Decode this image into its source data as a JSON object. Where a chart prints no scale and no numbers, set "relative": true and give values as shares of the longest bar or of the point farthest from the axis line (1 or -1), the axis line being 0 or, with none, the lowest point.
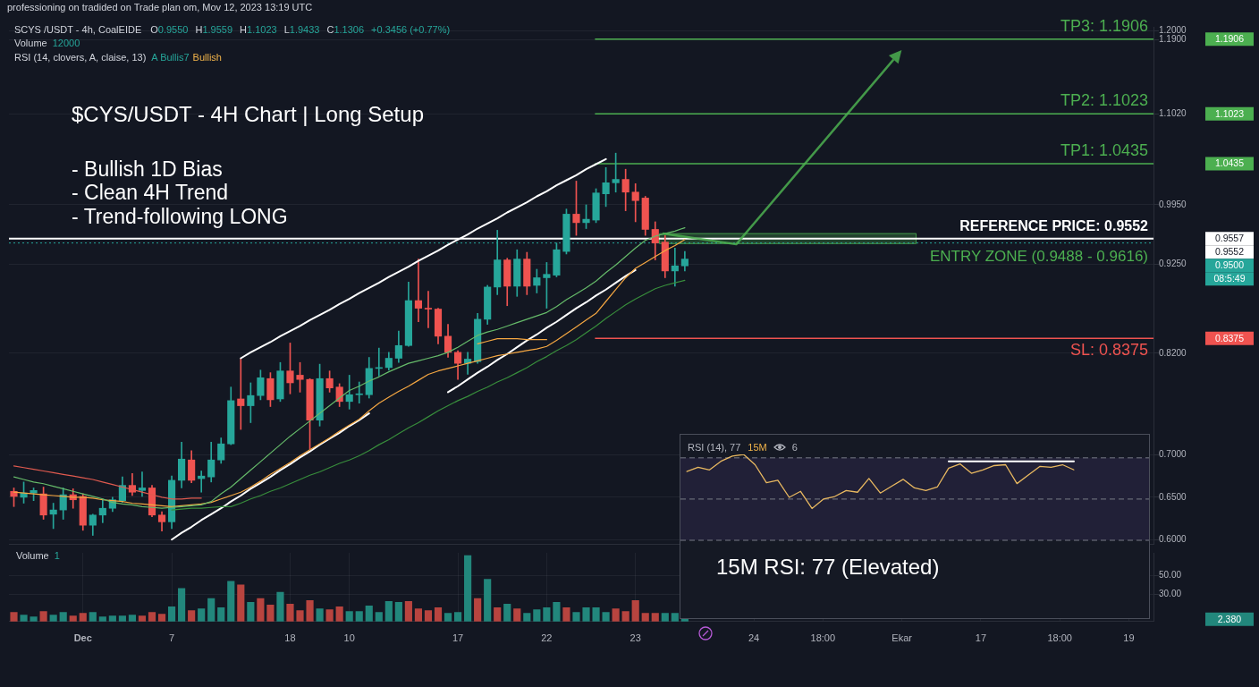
{
  "chart_data": [
    {
      "type": "candlestick",
      "title": "$CYS/USDT - 4H Chart | Long Setup",
      "categories": [
        null,
        null,
        null,
        null,
        null,
        null,
        null,
        null,
        null,
        null,
        null,
        null,
        null,
        null,
        null,
        null,
        null,
        null,
        null,
        null,
        null,
        null,
        null,
        null,
        null,
        null,
        null,
        null,
        null,
        null,
        null,
        null,
        null,
        null,
        null,
        null,
        null,
        null,
        null,
        null,
        null,
        null,
        null,
        null,
        null,
        null,
        null,
        null,
        null,
        null,
        null,
        null,
        null,
        null,
        null,
        null,
        null,
        null,
        null,
        null,
        null,
        null,
        null,
        null,
        null,
        null,
        null,
        null,
        null,
        null,
        null,
        null,
        null,
        null,
        null,
        null,
        null,
        null,
        null,
        null,
        null,
        null,
        null,
        null,
        null,
        null,
        null,
        null,
        null,
        null,
        null,
        null,
        null,
        null,
        null,
        null,
        null,
        null,
        null,
        null,
        null,
        null,
        null,
        null,
        null,
        null,
        null,
        null,
        null,
        null,
        null,
        null,
        null,
        null,
        null,
        null
      ],
      "ohlc": [
        [
          0.657,
          0.661,
          0.639,
          0.651
        ],
        [
          0.65,
          0.668,
          0.643,
          0.655
        ],
        [
          0.655,
          0.661,
          0.646,
          0.658
        ],
        [
          0.654,
          0.662,
          0.624,
          0.629
        ],
        [
          0.63,
          0.643,
          0.613,
          0.635
        ],
        [
          0.635,
          0.661,
          0.624,
          0.653
        ],
        [
          0.653,
          0.66,
          0.637,
          0.647
        ],
        [
          0.651,
          0.654,
          0.611,
          0.617
        ],
        [
          0.617,
          0.63,
          0.605,
          0.629
        ],
        [
          0.629,
          0.648,
          0.62,
          0.637
        ],
        [
          0.637,
          0.65,
          0.633,
          0.647
        ],
        [
          0.646,
          0.674,
          0.644,
          0.664
        ],
        [
          0.664,
          0.678,
          0.652,
          0.656
        ],
        [
          0.658,
          0.68,
          0.651,
          0.661
        ],
        [
          0.661,
          0.664,
          0.627,
          0.629
        ],
        [
          0.629,
          0.633,
          0.61,
          0.621
        ],
        [
          0.621,
          0.675,
          0.613,
          0.67
        ],
        [
          0.67,
          0.715,
          0.661,
          0.695
        ],
        [
          0.694,
          0.705,
          0.667,
          0.67
        ],
        [
          0.672,
          0.681,
          0.656,
          0.675
        ],
        [
          0.674,
          0.715,
          0.668,
          0.694
        ],
        [
          0.694,
          0.72,
          0.69,
          0.713
        ],
        [
          0.713,
          0.78,
          0.712,
          0.764
        ],
        [
          0.766,
          0.813,
          0.73,
          0.758
        ],
        [
          0.758,
          0.785,
          0.738,
          0.77
        ],
        [
          0.77,
          0.8,
          0.765,
          0.791
        ],
        [
          0.79,
          0.797,
          0.757,
          0.765
        ],
        [
          0.766,
          0.809,
          0.763,
          0.799
        ],
        [
          0.799,
          0.832,
          0.772,
          0.785
        ],
        [
          0.794,
          0.809,
          0.774,
          0.789
        ],
        [
          0.789,
          0.79,
          0.707,
          0.741
        ],
        [
          0.741,
          0.807,
          0.734,
          0.79
        ],
        [
          0.79,
          0.799,
          0.774,
          0.779
        ],
        [
          0.78,
          0.784,
          0.757,
          0.763
        ],
        [
          0.763,
          0.794,
          0.754,
          0.771
        ],
        [
          0.771,
          0.786,
          0.761,
          0.772
        ],
        [
          0.771,
          0.815,
          0.767,
          0.802
        ],
        [
          0.802,
          0.826,
          0.793,
          0.803
        ],
        [
          0.803,
          0.821,
          0.8,
          0.814
        ],
        [
          0.814,
          0.846,
          0.809,
          0.829
        ],
        [
          0.829,
          0.904,
          0.828,
          0.882
        ],
        [
          0.882,
          0.931,
          0.857,
          0.873
        ],
        [
          0.873,
          0.893,
          0.85,
          0.872
        ],
        [
          0.872,
          0.873,
          0.831,
          0.84
        ],
        [
          0.84,
          0.854,
          0.815,
          0.821
        ],
        [
          0.821,
          0.823,
          0.789,
          0.808
        ],
        [
          0.808,
          0.821,
          0.795,
          0.813
        ],
        [
          0.81,
          0.867,
          0.808,
          0.86
        ],
        [
          0.86,
          0.9,
          0.854,
          0.898
        ],
        [
          0.898,
          0.965,
          0.889,
          0.93
        ],
        [
          0.93,
          0.932,
          0.876,
          0.899
        ],
        [
          0.899,
          0.942,
          0.887,
          0.931
        ],
        [
          0.931,
          0.939,
          0.889,
          0.899
        ],
        [
          0.9,
          0.919,
          0.891,
          0.909
        ],
        [
          0.909,
          0.927,
          0.873,
          0.913
        ],
        [
          0.912,
          0.95,
          0.91,
          0.942
        ],
        [
          0.94,
          0.99,
          0.937,
          0.984
        ],
        [
          0.984,
          1.023,
          0.959,
          0.974
        ],
        [
          0.974,
          0.995,
          0.967,
          0.978
        ],
        [
          0.977,
          1.014,
          0.974,
          1.009
        ],
        [
          1.008,
          1.039,
          0.993,
          1.021
        ],
        [
          1.021,
          1.056,
          1.01,
          1.025
        ],
        [
          1.025,
          1.037,
          0.988,
          1.01
        ],
        [
          1.01,
          1.02,
          0.975,
          1.0
        ],
        [
          1.003,
          1.005,
          0.959,
          0.966
        ],
        [
          0.966,
          0.975,
          0.93,
          0.95
        ],
        [
          0.951,
          0.959,
          0.909,
          0.917
        ],
        [
          0.917,
          0.944,
          0.899,
          0.923
        ],
        [
          0.923,
          0.94,
          0.917,
          0.931
        ],
        null,
        null,
        null,
        null,
        null,
        null,
        null,
        null,
        null,
        null,
        null,
        null,
        null,
        null,
        null,
        null,
        null,
        null,
        null,
        null,
        null,
        null,
        null,
        null,
        null,
        null,
        null,
        null,
        null,
        null,
        null,
        null,
        null,
        null,
        null,
        null,
        null,
        null,
        null,
        null,
        null,
        null,
        null,
        null,
        null,
        null,
        null
      ],
      "colors": [
        "#ef5350",
        "#26a69a",
        "#26a69a",
        "#ef5350",
        "#26a69a",
        "#26a69a",
        "#ef5350",
        "#ef5350",
        "#26a69a",
        "#26a69a",
        "#26a69a",
        "#26a69a",
        "#ef5350",
        "#26a69a",
        "#ef5350",
        "#ef5350",
        "#26a69a",
        "#26a69a",
        "#ef5350",
        "#26a69a",
        "#26a69a",
        "#26a69a",
        "#26a69a",
        "#ef5350",
        "#26a69a",
        "#26a69a",
        "#ef5350",
        "#26a69a",
        "#ef5350",
        "#ef5350",
        "#ef5350",
        "#26a69a",
        "#ef5350",
        "#ef5350",
        "#26a69a",
        "#26a69a",
        "#26a69a",
        "#26a69a",
        "#26a69a",
        "#26a69a",
        "#26a69a",
        "#ef5350",
        "#ef5350",
        "#ef5350",
        "#ef5350",
        "#ef5350",
        "#26a69a",
        "#26a69a",
        "#26a69a",
        "#26a69a",
        "#ef5350",
        "#26a69a",
        "#ef5350",
        "#26a69a",
        "#26a69a",
        "#26a69a",
        "#26a69a",
        "#ef5350",
        "#26a69a",
        "#26a69a",
        "#26a69a",
        "#26a69a",
        "#ef5350",
        "#ef5350",
        "#ef5350",
        "#ef5350",
        "#ef5350",
        "#26a69a",
        "#26a69a",
        null,
        null,
        null,
        null,
        null,
        null,
        null,
        null,
        null,
        null,
        null,
        null,
        null,
        null,
        null,
        null,
        null,
        null,
        null,
        null,
        null,
        null,
        null,
        null,
        null,
        null,
        null,
        null,
        null,
        null,
        null,
        null,
        null,
        null,
        null,
        null,
        null,
        null,
        null,
        null,
        null,
        null,
        null,
        null,
        null,
        null,
        null
      ],
      "series": [
        {
          "type": "line",
          "color": "#66bb6a",
          "values": [
            0.674,
            0.671,
            0.668,
            0.666,
            0.663,
            0.66,
            0.657,
            0.654,
            0.651,
            0.648,
            0.644,
            0.642,
            0.641,
            0.639,
            0.638,
            0.637,
            0.638,
            0.639,
            0.64,
            0.641,
            0.645,
            0.654,
            0.662,
            0.672,
            0.682,
            0.692,
            0.702,
            0.712,
            0.722,
            0.731,
            0.74,
            0.749,
            0.758,
            0.767,
            0.776,
            0.781,
            0.787,
            0.792,
            0.798,
            0.803,
            0.808,
            0.811,
            0.814,
            0.817,
            0.821,
            0.827,
            0.834,
            0.841,
            0.845,
            0.848,
            0.852,
            0.856,
            0.86,
            0.864,
            0.868,
            0.875,
            0.883,
            0.89,
            0.897,
            0.905,
            0.915,
            0.924,
            0.934,
            0.944,
            0.953,
            0.958,
            0.961,
            0.964,
            0.968,
            null,
            null,
            null,
            null,
            null,
            null,
            null,
            null,
            null,
            null,
            null,
            null,
            null,
            null,
            null,
            null,
            null,
            null,
            null,
            null,
            null,
            null,
            null,
            null,
            null,
            null,
            null,
            null,
            null,
            null,
            null,
            null,
            null,
            null,
            null,
            null,
            null,
            null,
            null,
            null,
            null,
            null,
            null,
            null,
            null,
            null,
            null
          ]
        },
        {
          "type": "line",
          "color": "#f5a742",
          "values": [
            0.656,
            0.655,
            0.654,
            0.653,
            0.652,
            0.651,
            0.65,
            0.65,
            0.649,
            0.647,
            0.646,
            0.645,
            0.643,
            0.642,
            0.641,
            0.64,
            0.639,
            0.64,
            0.641,
            0.642,
            0.644,
            0.648,
            0.652,
            0.656,
            0.662,
            0.669,
            0.677,
            0.684,
            0.691,
            0.699,
            0.706,
            0.713,
            0.72,
            0.728,
            0.735,
            0.742,
            0.752,
            0.761,
            0.768,
            0.775,
            0.781,
            0.788,
            0.795,
            0.799,
            0.802,
            0.805,
            0.808,
            0.811,
            0.814,
            0.817,
            0.819,
            0.821,
            0.823,
            0.825,
            0.828,
            0.835,
            0.843,
            0.851,
            0.859,
            0.867,
            0.881,
            0.895,
            0.909,
            0.92,
            0.927,
            0.934,
            0.941,
            0.947,
            0.954,
            null,
            null,
            null,
            null,
            null,
            null,
            null,
            null,
            null,
            null,
            null,
            null,
            null,
            null,
            null,
            null,
            null,
            null,
            null,
            null,
            null,
            null,
            null,
            null,
            null,
            null,
            null,
            null,
            null,
            null,
            null,
            null,
            null,
            null,
            null,
            null,
            null,
            null,
            null,
            null,
            null,
            null,
            null,
            null,
            null,
            null,
            null
          ]
        },
        {
          "type": "line",
          "color": "#388e3c",
          "values": [
            null,
            null,
            null,
            null,
            null,
            null,
            null,
            null,
            null,
            null,
            null,
            null,
            null,
            null,
            null,
            null,
            0.635,
            0.636,
            0.637,
            0.637,
            0.638,
            0.639,
            0.639,
            0.643,
            0.648,
            0.652,
            0.657,
            0.661,
            0.666,
            0.671,
            0.676,
            0.68,
            0.685,
            0.69,
            0.694,
            0.699,
            0.705,
            0.712,
            0.718,
            0.725,
            0.732,
            0.738,
            0.745,
            0.752,
            0.758,
            0.764,
            0.769,
            0.775,
            0.78,
            0.786,
            0.791,
            0.797,
            0.803,
            0.81,
            0.816,
            0.823,
            0.829,
            0.836,
            0.844,
            0.852,
            0.861,
            0.869,
            0.877,
            0.884,
            0.89,
            0.896,
            0.9,
            0.903,
            0.906,
            null,
            null,
            null,
            null,
            null,
            null,
            null,
            null,
            null,
            null,
            null,
            null,
            null,
            null,
            null,
            null,
            null,
            null,
            null,
            null,
            null,
            null,
            null,
            null,
            null,
            null,
            null,
            null,
            null,
            null,
            null,
            null,
            null,
            null,
            null,
            null,
            null,
            null,
            null,
            null,
            null,
            null,
            null,
            null,
            null,
            null,
            null
          ]
        },
        {
          "type": "line",
          "color": "#e05a4f",
          "values": [
            0.687,
            0.685,
            0.683,
            0.681,
            0.679,
            0.677,
            0.675,
            0.673,
            0.671,
            0.668,
            0.665,
            0.662,
            0.659,
            0.656,
            0.653,
            0.65,
            0.648,
            0.648,
            0.649,
            0.649,
            null,
            null,
            null,
            null,
            null,
            null,
            null,
            null,
            null,
            null,
            null,
            null,
            null,
            null,
            null,
            null,
            null,
            null,
            null,
            null,
            null,
            null,
            null,
            null,
            null,
            null,
            null,
            null,
            null,
            null,
            null,
            null,
            null,
            null,
            null,
            null,
            null,
            null,
            null,
            null,
            null,
            null,
            null,
            null,
            null,
            null,
            null,
            null,
            null,
            null,
            null,
            null,
            null,
            null,
            null,
            null,
            null,
            null,
            null,
            null,
            null,
            null,
            null,
            null,
            null,
            null,
            null,
            null,
            null,
            null,
            null,
            null,
            null,
            null,
            null,
            null,
            null,
            null,
            null,
            null,
            null,
            null,
            null,
            null,
            null,
            null,
            null,
            null,
            null,
            null,
            null,
            null,
            null,
            null,
            null,
            null
          ]
        },
        {
          "type": "line",
          "color": "#f5a742",
          "values": [
            null,
            null,
            null,
            null,
            null,
            null,
            null,
            null,
            null,
            null,
            null,
            null,
            null,
            null,
            null,
            null,
            null,
            null,
            null,
            null,
            null,
            null,
            null,
            null,
            null,
            null,
            null,
            null,
            null,
            null,
            null,
            null,
            null,
            null,
            null,
            null,
            null,
            null,
            null,
            null,
            null,
            null,
            null,
            null,
            null,
            null,
            null,
            0.831,
            0.834,
            0.837,
            0.837,
            0.837,
            0.836,
            0.836,
            0.836,
            null,
            null,
            null,
            null,
            null,
            null,
            null,
            null,
            null,
            null,
            null,
            null,
            null,
            null,
            null,
            null,
            null,
            null,
            null,
            null,
            null,
            null,
            null,
            null,
            null,
            null,
            null,
            null,
            null,
            null,
            null,
            null,
            null,
            null,
            null,
            null,
            null,
            null,
            null,
            null,
            null,
            null,
            null,
            null,
            null,
            null,
            null,
            null,
            null,
            null,
            null,
            null,
            null,
            null,
            null,
            null,
            null,
            null,
            null,
            null,
            null
          ]
        },
        {
          "type": "line",
          "color": "#ffffff",
          "values": [
            null,
            null,
            null,
            null,
            null,
            null,
            null,
            null,
            null,
            null,
            null,
            null,
            null,
            null,
            null,
            null,
            null,
            null,
            null,
            null,
            null,
            null,
            null,
            0.814,
            0.821,
            0.827,
            0.833,
            0.84,
            0.846,
            0.852,
            0.859,
            0.865,
            0.871,
            0.878,
            0.884,
            0.891,
            0.897,
            0.903,
            0.91,
            0.916,
            0.922,
            0.929,
            0.935,
            0.941,
            0.948,
            0.954,
            0.96,
            0.967,
            0.973,
            0.979,
            0.986,
            0.992,
            0.998,
            1.005,
            1.011,
            1.018,
            1.024,
            1.03,
            1.037,
            1.043,
            1.049,
            null,
            null,
            null,
            null,
            null,
            null,
            null,
            null,
            null,
            null,
            null,
            null,
            null,
            null,
            null,
            null,
            null,
            null,
            null,
            null,
            null,
            null,
            null,
            null,
            null,
            null,
            null,
            null,
            null,
            null,
            null,
            null,
            null,
            null,
            null,
            null,
            null,
            null,
            null,
            null,
            null,
            null,
            null,
            null,
            null,
            null,
            null,
            null,
            null,
            null,
            null,
            null,
            null,
            null,
            null
          ]
        },
        {
          "type": "line",
          "color": "#ffffff",
          "values": [
            null,
            null,
            null,
            null,
            null,
            null,
            null,
            null,
            null,
            null,
            null,
            null,
            null,
            null,
            null,
            null,
            0.6,
            0.608,
            0.615,
            0.623,
            0.63,
            0.637,
            0.645,
            0.652,
            0.66,
            0.667,
            0.674,
            0.682,
            0.689,
            0.697,
            0.704,
            0.712,
            0.719,
            0.726,
            0.734,
            0.741,
            0.749,
            null,
            null,
            null,
            null,
            null,
            null,
            null,
            null,
            null,
            null,
            null,
            null,
            null,
            null,
            null,
            null,
            null,
            null,
            null,
            null,
            null,
            null,
            null,
            null,
            null,
            null,
            null,
            null,
            null,
            null,
            null,
            null,
            null,
            null,
            null,
            null,
            null,
            null,
            null,
            null,
            null,
            null,
            null,
            null,
            null,
            null,
            null,
            null,
            null,
            null,
            null,
            null,
            null,
            null,
            null,
            null,
            null,
            null,
            null,
            null,
            null,
            null,
            null,
            null,
            null,
            null,
            null,
            null,
            null,
            null,
            null,
            null,
            null,
            null,
            null,
            null,
            null,
            null,
            null
          ]
        },
        {
          "type": "line",
          "color": "#ffffff",
          "values": [
            null,
            null,
            null,
            null,
            null,
            null,
            null,
            null,
            null,
            null,
            null,
            null,
            null,
            null,
            null,
            null,
            null,
            null,
            null,
            null,
            null,
            null,
            null,
            null,
            null,
            null,
            null,
            null,
            null,
            null,
            null,
            null,
            null,
            null,
            null,
            null,
            null,
            null,
            null,
            null,
            null,
            null,
            null,
            null,
            0.774,
            0.781,
            0.789,
            0.797,
            0.804,
            0.812,
            0.819,
            0.827,
            0.835,
            0.842,
            0.85,
            0.857,
            0.865,
            0.873,
            0.88,
            0.888,
            0.895,
            0.903,
            0.911,
            0.918,
            null,
            null,
            null,
            null,
            null,
            null,
            null,
            null,
            null,
            null,
            null,
            null,
            null,
            null,
            null,
            null,
            null,
            null,
            null,
            null,
            null,
            null,
            null,
            null,
            null,
            null,
            null,
            null,
            null,
            null,
            null,
            null,
            null,
            null,
            null,
            null,
            null,
            null,
            null,
            null,
            null,
            null,
            null,
            null,
            null,
            null,
            null,
            null,
            null,
            null,
            null,
            null
          ]
        }
      ],
      "ylim": [
        0.595,
        1.205
      ],
      "yticks": [
        {
          "value": 0.6,
          "label": "0.6000"
        },
        {
          "value": 0.65,
          "label": "0.6500"
        },
        {
          "value": 0.7,
          "label": "0.7000"
        },
        {
          "value": 0.82,
          "label": "0.8200"
        },
        {
          "value": 0.925,
          "label": "0.9250"
        },
        {
          "value": 0.995,
          "label": "0.9950"
        },
        {
          "value": 1.102,
          "label": "1.1020"
        },
        {
          "value": 1.19,
          "label": "1.1900"
        },
        {
          "value": 1.2,
          "label": "1.2000"
        }
      ],
      "ref_lines": [
        {
          "axis": "y",
          "value": 1.1906,
          "label": "TP3: 1.1906",
          "color": "#4caf50"
        },
        {
          "axis": "y",
          "value": 1.1023,
          "label": "TP2: 1.1023",
          "color": "#4caf50"
        },
        {
          "axis": "y",
          "value": 1.0435,
          "label": "TP1: 1.0435",
          "color": "#4caf50"
        },
        {
          "axis": "y",
          "value": 0.9552,
          "label": "REFERENCE PRICE: 0.9552",
          "color": "#ffffff"
        },
        {
          "axis": "y",
          "value": 0.95,
          "color": "#26a69a",
          "line_style": "dotted"
        },
        {
          "axis": "y",
          "value": 0.8375,
          "label": "SL: 0.8375",
          "color": "#ef5350"
        }
      ],
      "bands": [
        {
          "axis": "y",
          "from": 0.9488,
          "to": 0.9616,
          "label": "ENTRY ZONE (0.9488 - 0.9616)",
          "color": "#4caf50"
        }
      ],
      "annotations": [
        "professioning on tradided on Trade plan om, Mov 12, 2023 13:19 UTC",
        "SCYS /USDT - 4h, CoalEIDE",
        "O",
        "0.9550",
        "H",
        "1.9559",
        "H",
        "1.1023",
        "L",
        "1.9433",
        "C",
        "1.1306",
        "+0.3456 (+0.77%)",
        "Volume",
        "12000",
        "RSI (14, clovers, A, claise, 13)",
        "A Bullis7",
        "Bullish",
        "- Bullish 1D Bias",
        "- Clean 4H Trend",
        "- Trend-following LONG",
        "1.1906",
        "1.1023",
        "1.0435",
        "0.9557",
        "0.9552",
        "0.9500",
        "08:5:49",
        "0.8375"
      ],
      "grid": "y",
      "tick_labels": "y"
    },
    {
      "type": "bar",
      "categories": [
        null,
        null,
        null,
        null,
        null,
        null,
        null,
        "Dec",
        null,
        null,
        null,
        null,
        null,
        null,
        null,
        null,
        "7",
        null,
        null,
        null,
        null,
        null,
        null,
        null,
        null,
        null,
        null,
        null,
        "18",
        null,
        null,
        null,
        null,
        null,
        "10",
        null,
        null,
        null,
        null,
        null,
        null,
        null,
        null,
        null,
        null,
        "17",
        null,
        null,
        null,
        null,
        null,
        null,
        null,
        null,
        "22",
        null,
        null,
        null,
        null,
        null,
        null,
        null,
        null,
        "23",
        null,
        null,
        null,
        null,
        null,
        null,
        null,
        null,
        null,
        null,
        null,
        "24",
        null,
        null,
        null,
        null,
        null,
        null,
        "18:00",
        null,
        null,
        null,
        null,
        null,
        null,
        null,
        "Ekar",
        null,
        null,
        null,
        null,
        null,
        null,
        null,
        "17",
        null,
        null,
        null,
        null,
        null,
        null,
        null,
        "18:00",
        null,
        null,
        null,
        null,
        null,
        null,
        "19",
        null,
        null
      ],
      "values": [
        10,
        7,
        5,
        11,
        7,
        10,
        6,
        9,
        10,
        5,
        6,
        6,
        7,
        6,
        10,
        8,
        16,
        36,
        12,
        14,
        25,
        15,
        44,
        40,
        21,
        25,
        18,
        32,
        19,
        12,
        23,
        14,
        13,
        16,
        11,
        11,
        17,
        10,
        22,
        21,
        22,
        14,
        12,
        15,
        9,
        10,
        72,
        25,
        46,
        15,
        19,
        14,
        9,
        13,
        15,
        21,
        15,
        10,
        15,
        15,
        10,
        14,
        11,
        23,
        9,
        9,
        9,
        9,
        2.38,
        null,
        null,
        null,
        null,
        null,
        null,
        null,
        null,
        null,
        null,
        null,
        null,
        null,
        null,
        null,
        null,
        null,
        null,
        null,
        null,
        null,
        null,
        null,
        null,
        null,
        null,
        null,
        null,
        null,
        null,
        null,
        null,
        null,
        null,
        null,
        null,
        null,
        null,
        null,
        null,
        null,
        null,
        null,
        null,
        null,
        null,
        null
      ],
      "colors": [
        "#b8443f",
        "#22877c",
        "#22877c",
        "#b8443f",
        "#22877c",
        "#22877c",
        "#b8443f",
        "#b8443f",
        "#22877c",
        "#22877c",
        "#22877c",
        "#22877c",
        "#22877c",
        "#b8443f",
        "#b8443f",
        "#b8443f",
        "#22877c",
        "#22877c",
        "#b8443f",
        "#22877c",
        "#22877c",
        "#22877c",
        "#22877c",
        "#b8443f",
        "#22877c",
        "#b8443f",
        "#b8443f",
        "#22877c",
        "#b8443f",
        "#b8443f",
        "#b8443f",
        "#22877c",
        "#b8443f",
        "#b8443f",
        "#22877c",
        "#22877c",
        "#22877c",
        "#22877c",
        "#22877c",
        "#22877c",
        "#b8443f",
        "#b8443f",
        "#b8443f",
        "#b8443f",
        "#22877c",
        "#22877c",
        "#22877c",
        "#b8443f",
        "#22877c",
        "#b8443f",
        "#22877c",
        "#b8443f",
        "#22877c",
        "#22877c",
        "#22877c",
        "#22877c",
        "#b8443f",
        "#22877c",
        "#22877c",
        "#22877c",
        "#22877c",
        "#b8443f",
        "#b8443f",
        "#b8443f",
        "#b8443f",
        "#b8443f",
        "#22877c",
        "#22877c",
        "#22877c",
        null,
        null,
        null,
        null,
        null,
        null,
        null,
        null,
        null,
        null,
        null,
        null,
        null,
        null,
        null,
        null,
        null,
        null,
        null,
        null,
        null,
        null,
        null,
        null,
        null,
        null,
        null,
        null,
        null,
        null,
        null,
        null,
        null,
        null,
        null,
        null,
        null,
        null,
        null,
        null,
        null,
        null,
        null,
        null,
        null,
        null,
        null
      ],
      "ylim": [
        0,
        75
      ],
      "yticks": [
        {
          "value": 30,
          "label": "30.00"
        },
        {
          "value": 50,
          "label": "50.00"
        }
      ],
      "annotations": [
        "Volume",
        "1",
        "2.380"
      ],
      "grid": true
    },
    {
      "type": "line",
      "categories": [
        null,
        null,
        null,
        null,
        null,
        null,
        null,
        null,
        null,
        null,
        null,
        null,
        null,
        null,
        null,
        null,
        null,
        null,
        null,
        null,
        null,
        null,
        null,
        null,
        null,
        null,
        null,
        null,
        null,
        null,
        null,
        null,
        null,
        null,
        null
      ],
      "series": [
        {
          "color": "#e8b860",
          "values": [
            0.8,
            0.85,
            0.82,
            0.92,
            0.98,
            1,
            0.88,
            0.67,
            0.7,
            0.5,
            0.57,
            0.37,
            0.48,
            0.51,
            0.58,
            0.56,
            0.72,
            0.55,
            0.63,
            0.71,
            0.61,
            0.58,
            0.62,
            0.84,
            0.89,
            0.78,
            0.82,
            0.87,
            0.88,
            0.66,
            0.76,
            0.86,
            0.85,
            0.88,
            0.82
          ]
        },
        {
          "color": "#ffffff",
          "values": [
            null,
            null,
            null,
            null,
            null,
            null,
            null,
            null,
            null,
            null,
            null,
            null,
            null,
            null,
            null,
            null,
            null,
            null,
            null,
            null,
            null,
            null,
            null,
            0.92,
            0.92,
            0.92,
            0.92,
            0.92,
            0.92,
            0.92,
            0.92,
            0.92,
            0.92,
            0.92,
            0.92
          ]
        }
      ],
      "relative": true,
      "ref_lines": [
        {
          "axis": "y",
          "value": 0.96,
          "color": "#787b86",
          "line_style": "dashed"
        },
        {
          "axis": "y",
          "value": 0.48,
          "color": "#787b86",
          "line_style": "dashed"
        },
        {
          "axis": "y",
          "value": 0,
          "color": "#787b86",
          "line_style": "dashed"
        }
      ],
      "bands": [
        {
          "axis": "y",
          "from": 0,
          "to": 0.96,
          "color": "#7e57c2"
        }
      ],
      "annotations": [
        "RSI (14), 77",
        "15M",
        "6",
        "15M RSI: 77 (Elevated)"
      ],
      "tick_labels": false
    }
  ]
}
